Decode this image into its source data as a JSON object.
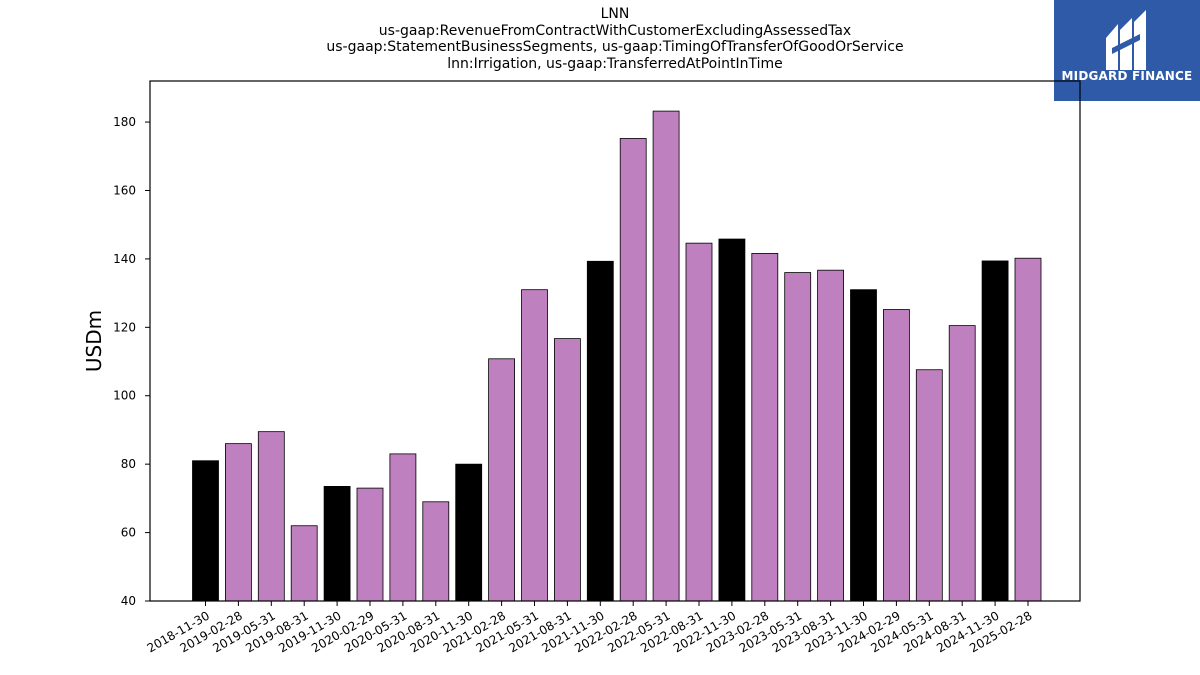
{
  "chart_data": {
    "type": "bar",
    "title_lines": [
      "LNN",
      "us-gaap:RevenueFromContractWithCustomerExcludingAssessedTax",
      "us-gaap:StatementBusinessSegments, us-gaap:TimingOfTransferOfGoodOrService",
      "lnn:Irrigation, us-gaap:TransferredAtPointInTime"
    ],
    "xlabel": "",
    "ylabel": "USDm",
    "ylim": [
      40,
      192
    ],
    "yticks": [
      40,
      60,
      80,
      100,
      120,
      140,
      160,
      180
    ],
    "grid": false,
    "categories": [
      "2018-11-30",
      "2019-02-28",
      "2019-05-31",
      "2019-08-31",
      "2019-11-30",
      "2020-02-29",
      "2020-05-31",
      "2020-08-31",
      "2020-11-30",
      "2021-02-28",
      "2021-05-31",
      "2021-08-31",
      "2021-11-30",
      "2022-02-28",
      "2022-05-31",
      "2022-08-31",
      "2022-11-30",
      "2023-02-28",
      "2023-05-31",
      "2023-08-31",
      "2023-11-30",
      "2024-02-29",
      "2024-05-31",
      "2024-08-31",
      "2024-11-30",
      "2025-02-28"
    ],
    "values": [
      81,
      86,
      89.5,
      62,
      73.5,
      73,
      83,
      69,
      80,
      110.8,
      131,
      116.7,
      139.3,
      175.2,
      183.2,
      144.6,
      145.8,
      141.6,
      136,
      136.7,
      131,
      125.2,
      107.6,
      120.5,
      139.4,
      140.2
    ],
    "fiscal_year_end": [
      true,
      false,
      false,
      false,
      true,
      false,
      false,
      false,
      true,
      false,
      false,
      false,
      true,
      false,
      false,
      false,
      true,
      false,
      false,
      false,
      true,
      false,
      false,
      false,
      true,
      false
    ],
    "colors": {
      "quarter": "#bf80bf",
      "year_end": "#000000",
      "edge": "#000000"
    }
  },
  "logo": {
    "text": "MIDGARD FINANCE",
    "background": "#2e5aa8"
  }
}
